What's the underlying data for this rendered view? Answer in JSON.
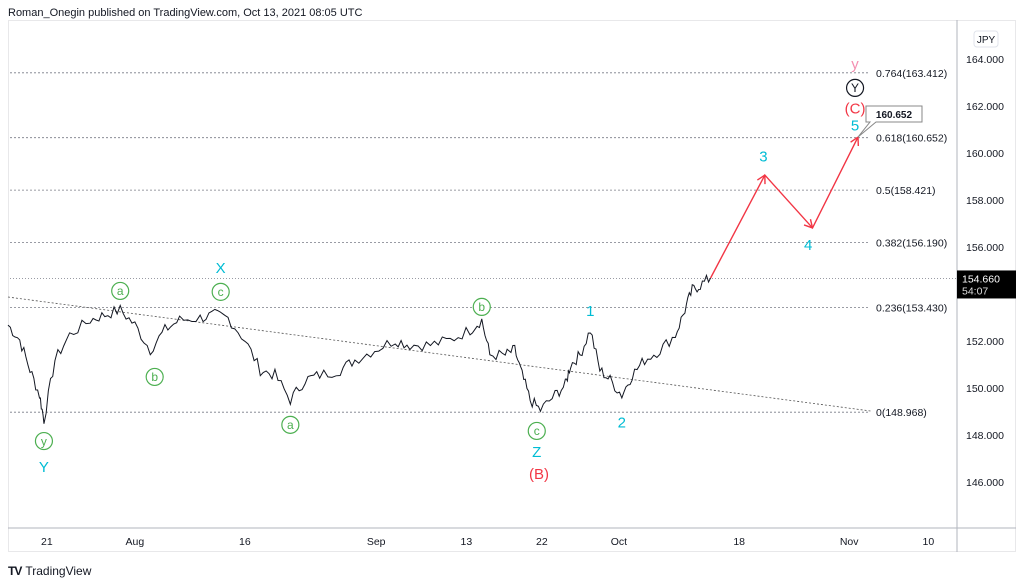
{
  "header": {
    "attribution": "Roman_Onegin published on TradingView.com, Oct 13, 2021 08:05 UTC"
  },
  "footer": {
    "logo_text": "TradingView",
    "logo_mark": "TV"
  },
  "chart_data": {
    "type": "line",
    "symbol_currency": "JPY",
    "xlim": [
      -5.3,
      124.1
    ],
    "ylim": [
      144.04,
      165.66
    ],
    "x_unit": "days since Jul 21, 2021",
    "x_ticks": [
      {
        "x": 0,
        "label": "21"
      },
      {
        "x": 12,
        "label": "Aug"
      },
      {
        "x": 27,
        "label": "16"
      },
      {
        "x": 44.9,
        "label": "Sep"
      },
      {
        "x": 57.2,
        "label": "13"
      },
      {
        "x": 67.5,
        "label": "22"
      },
      {
        "x": 78,
        "label": "Oct"
      },
      {
        "x": 94.4,
        "label": "18"
      },
      {
        "x": 109.4,
        "label": "Nov"
      },
      {
        "x": 120.2,
        "label": "10"
      }
    ],
    "y_ticks": [
      {
        "y": 164,
        "label": "164.000"
      },
      {
        "y": 162,
        "label": "162.000"
      },
      {
        "y": 160,
        "label": "160.000"
      },
      {
        "y": 158,
        "label": "158.000"
      },
      {
        "y": 156,
        "label": "156.000"
      },
      {
        "y": 152,
        "label": "152.000"
      },
      {
        "y": 150,
        "label": "150.000"
      },
      {
        "y": 148,
        "label": "148.000"
      },
      {
        "y": 146,
        "label": "146.000"
      }
    ],
    "price_series": [
      [
        -5.3,
        152.68
      ],
      [
        -3.7,
        152.04
      ],
      [
        -2.3,
        150.77
      ],
      [
        -1.0,
        149.7
      ],
      [
        -0.4,
        148.64
      ],
      [
        1.1,
        151.19
      ],
      [
        3.1,
        152.26
      ],
      [
        5.9,
        152.89
      ],
      [
        7.9,
        153.11
      ],
      [
        10.0,
        153.32
      ],
      [
        12.0,
        152.68
      ],
      [
        14.1,
        151.62
      ],
      [
        16.1,
        152.47
      ],
      [
        18.1,
        152.89
      ],
      [
        20.9,
        152.98
      ],
      [
        22.9,
        153.11
      ],
      [
        24.7,
        152.98
      ],
      [
        27.0,
        152.04
      ],
      [
        29.1,
        150.77
      ],
      [
        31.1,
        150.55
      ],
      [
        33.2,
        149.49
      ],
      [
        35.2,
        150.34
      ],
      [
        37.2,
        150.55
      ],
      [
        40.0,
        150.77
      ],
      [
        42.0,
        151.19
      ],
      [
        44.7,
        151.62
      ],
      [
        47.5,
        152.04
      ],
      [
        49.5,
        151.83
      ],
      [
        52.3,
        151.83
      ],
      [
        55.0,
        152.04
      ],
      [
        57.7,
        152.47
      ],
      [
        59.3,
        152.89
      ],
      [
        60.4,
        151.4
      ],
      [
        62.5,
        151.4
      ],
      [
        63.8,
        151.62
      ],
      [
        64.8,
        150.55
      ],
      [
        65.9,
        149.49
      ],
      [
        67.3,
        149.06
      ],
      [
        69.3,
        149.7
      ],
      [
        70.7,
        150.13
      ],
      [
        71.4,
        150.98
      ],
      [
        72.7,
        151.4
      ],
      [
        74.1,
        152.47
      ],
      [
        75.4,
        150.77
      ],
      [
        76.8,
        150.34
      ],
      [
        78.4,
        149.7
      ],
      [
        79.8,
        150.55
      ],
      [
        81.5,
        151.19
      ],
      [
        83.6,
        151.62
      ],
      [
        85.7,
        152.26
      ],
      [
        87.0,
        153.32
      ],
      [
        88.0,
        154.17
      ],
      [
        89.1,
        154.38
      ],
      [
        90.5,
        154.68
      ]
    ],
    "last_price": {
      "value": "154.660",
      "countdown": "54:07",
      "y": 154.66
    },
    "fib_levels": [
      {
        "y": 163.412,
        "label": "0.764(163.412)"
      },
      {
        "y": 160.652,
        "label": "0.618(160.652)"
      },
      {
        "y": 158.421,
        "label": "0.5(158.421)"
      },
      {
        "y": 156.19,
        "label": "0.382(156.190)"
      },
      {
        "y": 153.43,
        "label": "0.236(153.430)"
      },
      {
        "y": 148.968,
        "label": "0(148.968)"
      }
    ],
    "trendline": [
      [
        -5.3,
        153.87
      ],
      [
        112.3,
        149.02
      ]
    ],
    "projection": [
      [
        90.5,
        154.68
      ],
      [
        97.9,
        159.06
      ],
      [
        104.4,
        156.81
      ],
      [
        110.6,
        160.68
      ]
    ],
    "callout": {
      "x": 110.6,
      "y": 160.68,
      "label": "160.652"
    },
    "wave_labels": [
      {
        "x": -0.4,
        "y": 147.74,
        "text": "y",
        "style": "circle-green"
      },
      {
        "x": -0.4,
        "y": 146.64,
        "text": "Y",
        "style": "teal"
      },
      {
        "x": 10,
        "y": 154.13,
        "text": "a",
        "style": "circle-green"
      },
      {
        "x": 14.7,
        "y": 150.47,
        "text": "b",
        "style": "circle-green"
      },
      {
        "x": 23.7,
        "y": 154.09,
        "text": "c",
        "style": "circle-green"
      },
      {
        "x": 23.7,
        "y": 155.11,
        "text": "X",
        "style": "teal"
      },
      {
        "x": 33.2,
        "y": 148.43,
        "text": "a",
        "style": "circle-green"
      },
      {
        "x": 59.3,
        "y": 153.45,
        "text": "b",
        "style": "circle-green"
      },
      {
        "x": 66.8,
        "y": 148.17,
        "text": "c",
        "style": "circle-green"
      },
      {
        "x": 66.8,
        "y": 147.28,
        "text": "Z",
        "style": "teal"
      },
      {
        "x": 67.1,
        "y": 146.34,
        "text": "(B)",
        "style": "red"
      },
      {
        "x": 74.1,
        "y": 153.28,
        "text": "1",
        "style": "teal"
      },
      {
        "x": 78.4,
        "y": 148.55,
        "text": "2",
        "style": "teal"
      },
      {
        "x": 97.7,
        "y": 159.87,
        "text": "3",
        "style": "teal"
      },
      {
        "x": 103.8,
        "y": 156.09,
        "text": "4",
        "style": "teal"
      },
      {
        "x": 110.2,
        "y": 161.19,
        "text": "5",
        "style": "teal"
      },
      {
        "x": 110.2,
        "y": 161.91,
        "text": "(C)",
        "style": "red"
      },
      {
        "x": 110.2,
        "y": 162.77,
        "text": "Y",
        "style": "circle-black"
      },
      {
        "x": 110.2,
        "y": 163.79,
        "text": "y",
        "style": "pink"
      }
    ],
    "colors": {
      "price": "#131722",
      "projection": "#f23645",
      "teal": "#00bcd4",
      "green": "#4caf50",
      "red": "#f23645",
      "pink": "#f48fb1",
      "fib": "#787b86"
    }
  }
}
